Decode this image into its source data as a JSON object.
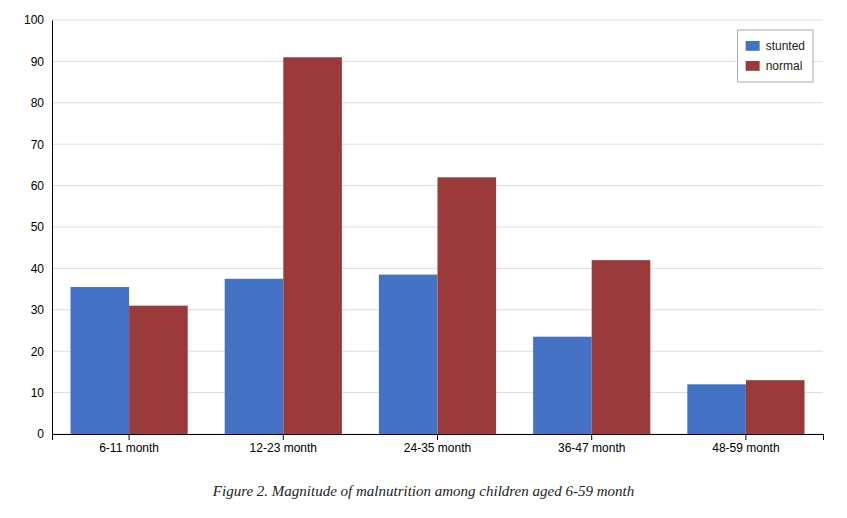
{
  "chart_data": {
    "type": "bar",
    "title": "Figure 2. Magnitude of malnutrition among children aged 6-59 month",
    "categories": [
      "6-11 month",
      "12-23 month",
      "24-35 month",
      "36-47 month",
      "48-59 month"
    ],
    "series": [
      {
        "name": "stunted",
        "color": "#4472C4",
        "values": [
          35.5,
          37.5,
          38.5,
          23.5,
          12.0
        ]
      },
      {
        "name": "normal",
        "color": "#9B3A3A",
        "values": [
          31.0,
          91.0,
          62.0,
          42.0,
          13.0
        ]
      }
    ],
    "ylim": [
      0,
      100
    ],
    "yticks": [
      0,
      10,
      20,
      30,
      40,
      50,
      60,
      70,
      80,
      90,
      100
    ],
    "grid": true,
    "legend": "upper right"
  }
}
